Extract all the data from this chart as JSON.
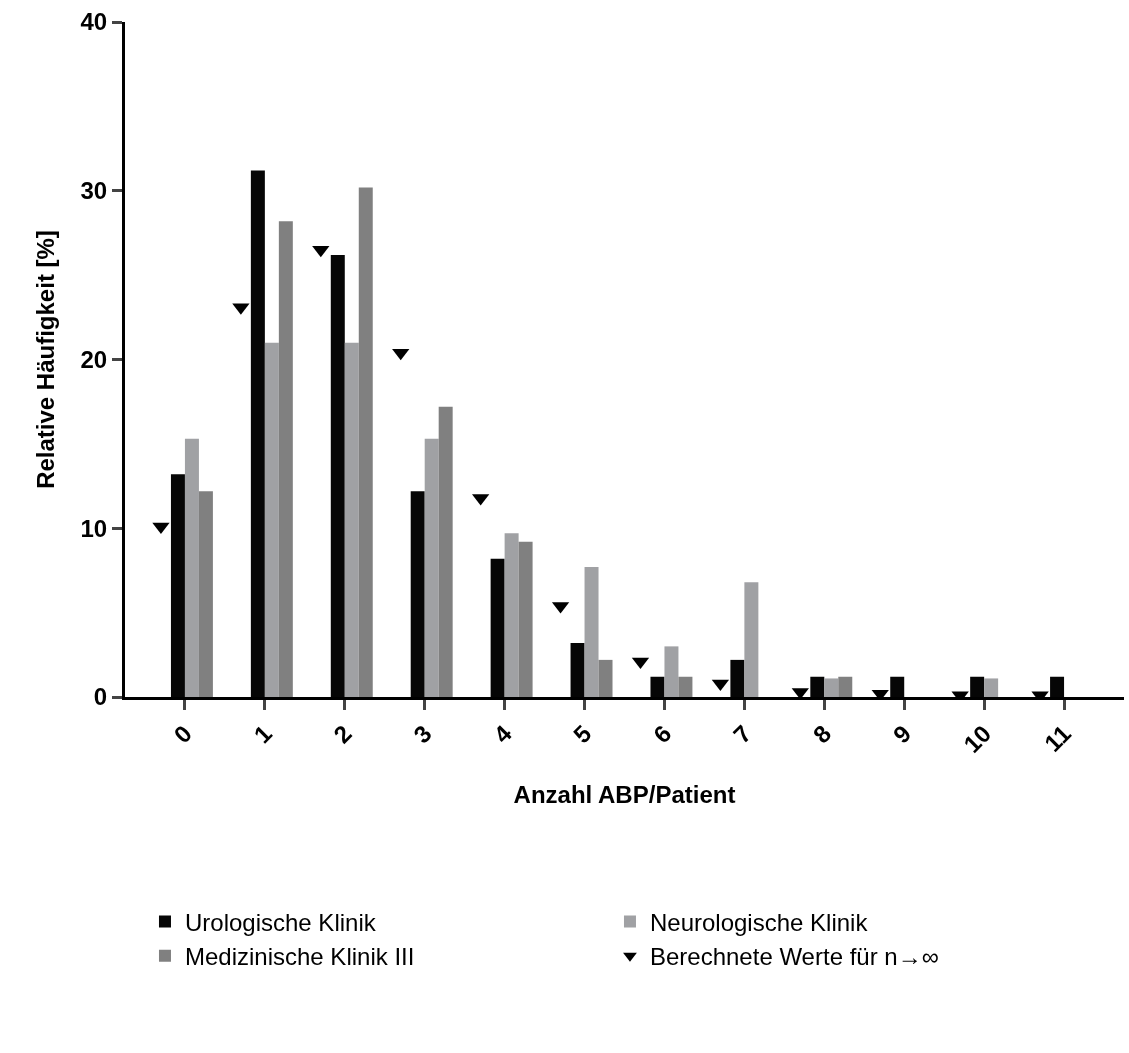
{
  "chart_data": {
    "type": "bar",
    "xlabel": "Anzahl ABP/Patient",
    "ylabel": "Relative Häufigkeit [%]",
    "categories": [
      "0",
      "1",
      "2",
      "3",
      "4",
      "5",
      "6",
      "7",
      "8",
      "9",
      "10",
      "11"
    ],
    "series": [
      {
        "name": "Urologische Klinik",
        "color": "#060606",
        "values": [
          13.2,
          31.2,
          26.2,
          12.2,
          8.2,
          3.2,
          1.2,
          2.2,
          1.2,
          1.2,
          1.2,
          1.2
        ]
      },
      {
        "name": "Neurologische Klinik",
        "color": "#a0a1a4",
        "values": [
          15.3,
          21.0,
          21.0,
          15.3,
          9.7,
          7.7,
          3.0,
          6.8,
          1.1,
          0,
          1.1,
          0
        ]
      },
      {
        "name": "Medizinische Klinik III",
        "color": "#808080",
        "values": [
          12.2,
          28.2,
          30.2,
          17.2,
          9.2,
          2.2,
          1.2,
          0,
          1.2,
          0,
          0,
          0
        ]
      },
      {
        "name": "Berechnete Werte für n→∞",
        "type": "scatter",
        "marker": "triangle",
        "color": "#000000",
        "x": [
          "0",
          "1",
          "2",
          "3",
          "4",
          "5",
          "6",
          "7",
          "8",
          "9",
          "10",
          "11"
        ],
        "values": [
          10.1,
          23.1,
          26.5,
          20.4,
          11.8,
          5.4,
          2.1,
          0.8,
          0.3,
          0.2,
          0.1,
          0.1
        ]
      }
    ],
    "ylim": [
      0,
      40
    ],
    "yticks": [
      0,
      10,
      20,
      30,
      40
    ],
    "legend": "bottom"
  }
}
